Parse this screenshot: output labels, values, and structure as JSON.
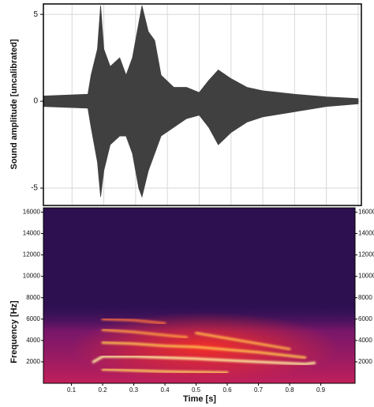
{
  "chart_data": [
    {
      "type": "waveform",
      "y_label": "Sound amplitude [uncalibrated]",
      "x": [
        0.01,
        0.15,
        0.16,
        0.18,
        0.19,
        0.2,
        0.22,
        0.25,
        0.27,
        0.29,
        0.31,
        0.32,
        0.34,
        0.36,
        0.38,
        0.42,
        0.46,
        0.5,
        0.53,
        0.56,
        0.6,
        0.65,
        0.7,
        0.8,
        0.9,
        1.0
      ],
      "upper": [
        0.3,
        0.4,
        1.5,
        3,
        5.5,
        3,
        2,
        2.5,
        1.5,
        2.5,
        4.5,
        5.5,
        4,
        3.5,
        1.5,
        0.8,
        0.8,
        0.5,
        1.2,
        1.8,
        1.3,
        0.8,
        0.6,
        0.4,
        0.25,
        0.15
      ],
      "lower": [
        -0.3,
        -0.4,
        -1.5,
        -3.5,
        -5.5,
        -4,
        -2.5,
        -2,
        -2,
        -3,
        -5,
        -5.5,
        -4,
        -3,
        -2,
        -1.5,
        -1,
        -0.8,
        -1.5,
        -2.5,
        -1.8,
        -1.2,
        -0.9,
        -0.6,
        -0.3,
        -0.15
      ],
      "color": "#404040",
      "xlim": [
        0.01,
        1.01
      ],
      "ylim": [
        -6,
        5.6
      ],
      "xticks": [
        0.1,
        0.2,
        0.3,
        0.4,
        0.5,
        0.6,
        0.7,
        0.8,
        0.9,
        1.0
      ],
      "yticks": [
        -5,
        0,
        5
      ],
      "grid": true
    },
    {
      "type": "spectrogram",
      "x_label": "Time [s]",
      "y_label": "Frequency [Hz]",
      "xlim": [
        0.01,
        1.01
      ],
      "ylim": [
        0,
        16400
      ],
      "xticks": [
        0.1,
        0.2,
        0.3,
        0.4,
        0.5,
        0.6,
        0.7,
        0.8,
        0.9
      ],
      "yticks": [
        2000,
        4000,
        6000,
        8000,
        10000,
        12000,
        14000,
        16000
      ],
      "background": "#2d1050",
      "tracks": [
        {
          "t": [
            0.17,
            0.2,
            0.3,
            0.5,
            0.7,
            0.85,
            0.88
          ],
          "f": [
            2000,
            2500,
            2500,
            2300,
            2000,
            1800,
            1900
          ],
          "color": "#fff2a0"
        },
        {
          "t": [
            0.2,
            0.4,
            0.6
          ],
          "f": [
            1300,
            1100,
            1000
          ],
          "color": "#ffd060"
        },
        {
          "t": [
            0.2,
            0.3,
            0.4,
            0.5,
            0.7,
            0.85
          ],
          "f": [
            3800,
            3700,
            3500,
            3400,
            2900,
            2400
          ],
          "color": "#ffc050"
        },
        {
          "t": [
            0.2,
            0.3,
            0.4,
            0.47
          ],
          "f": [
            5000,
            4800,
            4500,
            4300
          ],
          "color": "#ff9a40"
        },
        {
          "t": [
            0.5,
            0.6,
            0.8
          ],
          "f": [
            4700,
            4200,
            3200
          ],
          "color": "#ffb048"
        },
        {
          "t": [
            0.2,
            0.3,
            0.4
          ],
          "f": [
            6000,
            5900,
            5600
          ],
          "color": "#ff7040"
        }
      ]
    }
  ]
}
